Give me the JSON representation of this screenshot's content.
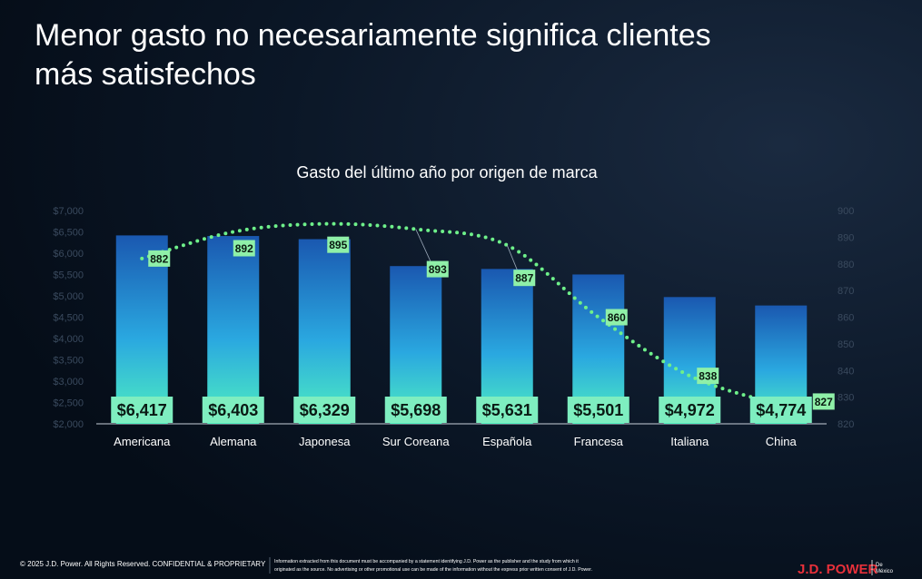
{
  "slide": {
    "title_lines": [
      "Menor gasto no necesariamente significa clientes",
      "más satisfechos"
    ],
    "footer": "© 2025 J.D. Power. All Rights Reserved. CONFIDENTIAL & PROPRIETARY",
    "disclaimer_lines": [
      "Information extracted from this document must be accompanied by a statement identifying J.D. Power as the publisher and the study from which it",
      "originated as the source. No advertising or other promotional use can be made of the information without the express prior written consent of J.D. Power."
    ],
    "brand": "J.D. POWER",
    "brand_sub_lines": [
      "De",
      "México"
    ]
  },
  "chart_data": {
    "type": "bar",
    "title": "Gasto del último año por origen de marca",
    "categories": [
      "Americana",
      "Alemana",
      "Japonesa",
      "Sur Coreana",
      "Española",
      "Francesa",
      "Italiana",
      "China"
    ],
    "series": [
      {
        "type": "bar",
        "color": "#1c63b8",
        "values": [
          6417,
          6403,
          6329,
          5698,
          5631,
          5501,
          4972,
          4774
        ],
        "value_labels": [
          "$6,417",
          "$6,403",
          "$6,329",
          "$5,698",
          "$5,631",
          "$5,501",
          "$4,972",
          "$4,774"
        ]
      },
      {
        "type": "line",
        "axis": "y2",
        "color": "#6ef08a",
        "values": [
          882,
          892,
          895,
          893,
          887,
          860,
          838,
          827
        ]
      }
    ],
    "ylim": [
      2000,
      7000
    ],
    "yticks": [
      {
        "value": 2000,
        "label": "$2,000"
      },
      {
        "value": 2500,
        "label": "$2,500"
      },
      {
        "value": 3000,
        "label": "$3,000"
      },
      {
        "value": 3500,
        "label": "$3,500"
      },
      {
        "value": 4000,
        "label": "$4,000"
      },
      {
        "value": 4500,
        "label": "$4,500"
      },
      {
        "value": 5000,
        "label": "$5,000"
      },
      {
        "value": 5500,
        "label": "$5,500"
      },
      {
        "value": 6000,
        "label": "$6,000"
      },
      {
        "value": 6500,
        "label": "$6,500"
      },
      {
        "value": 7000,
        "label": "$7,000"
      }
    ],
    "y2lim": [
      820,
      900
    ],
    "y2ticks": [
      820,
      830,
      840,
      850,
      860,
      870,
      880,
      890,
      900
    ]
  }
}
